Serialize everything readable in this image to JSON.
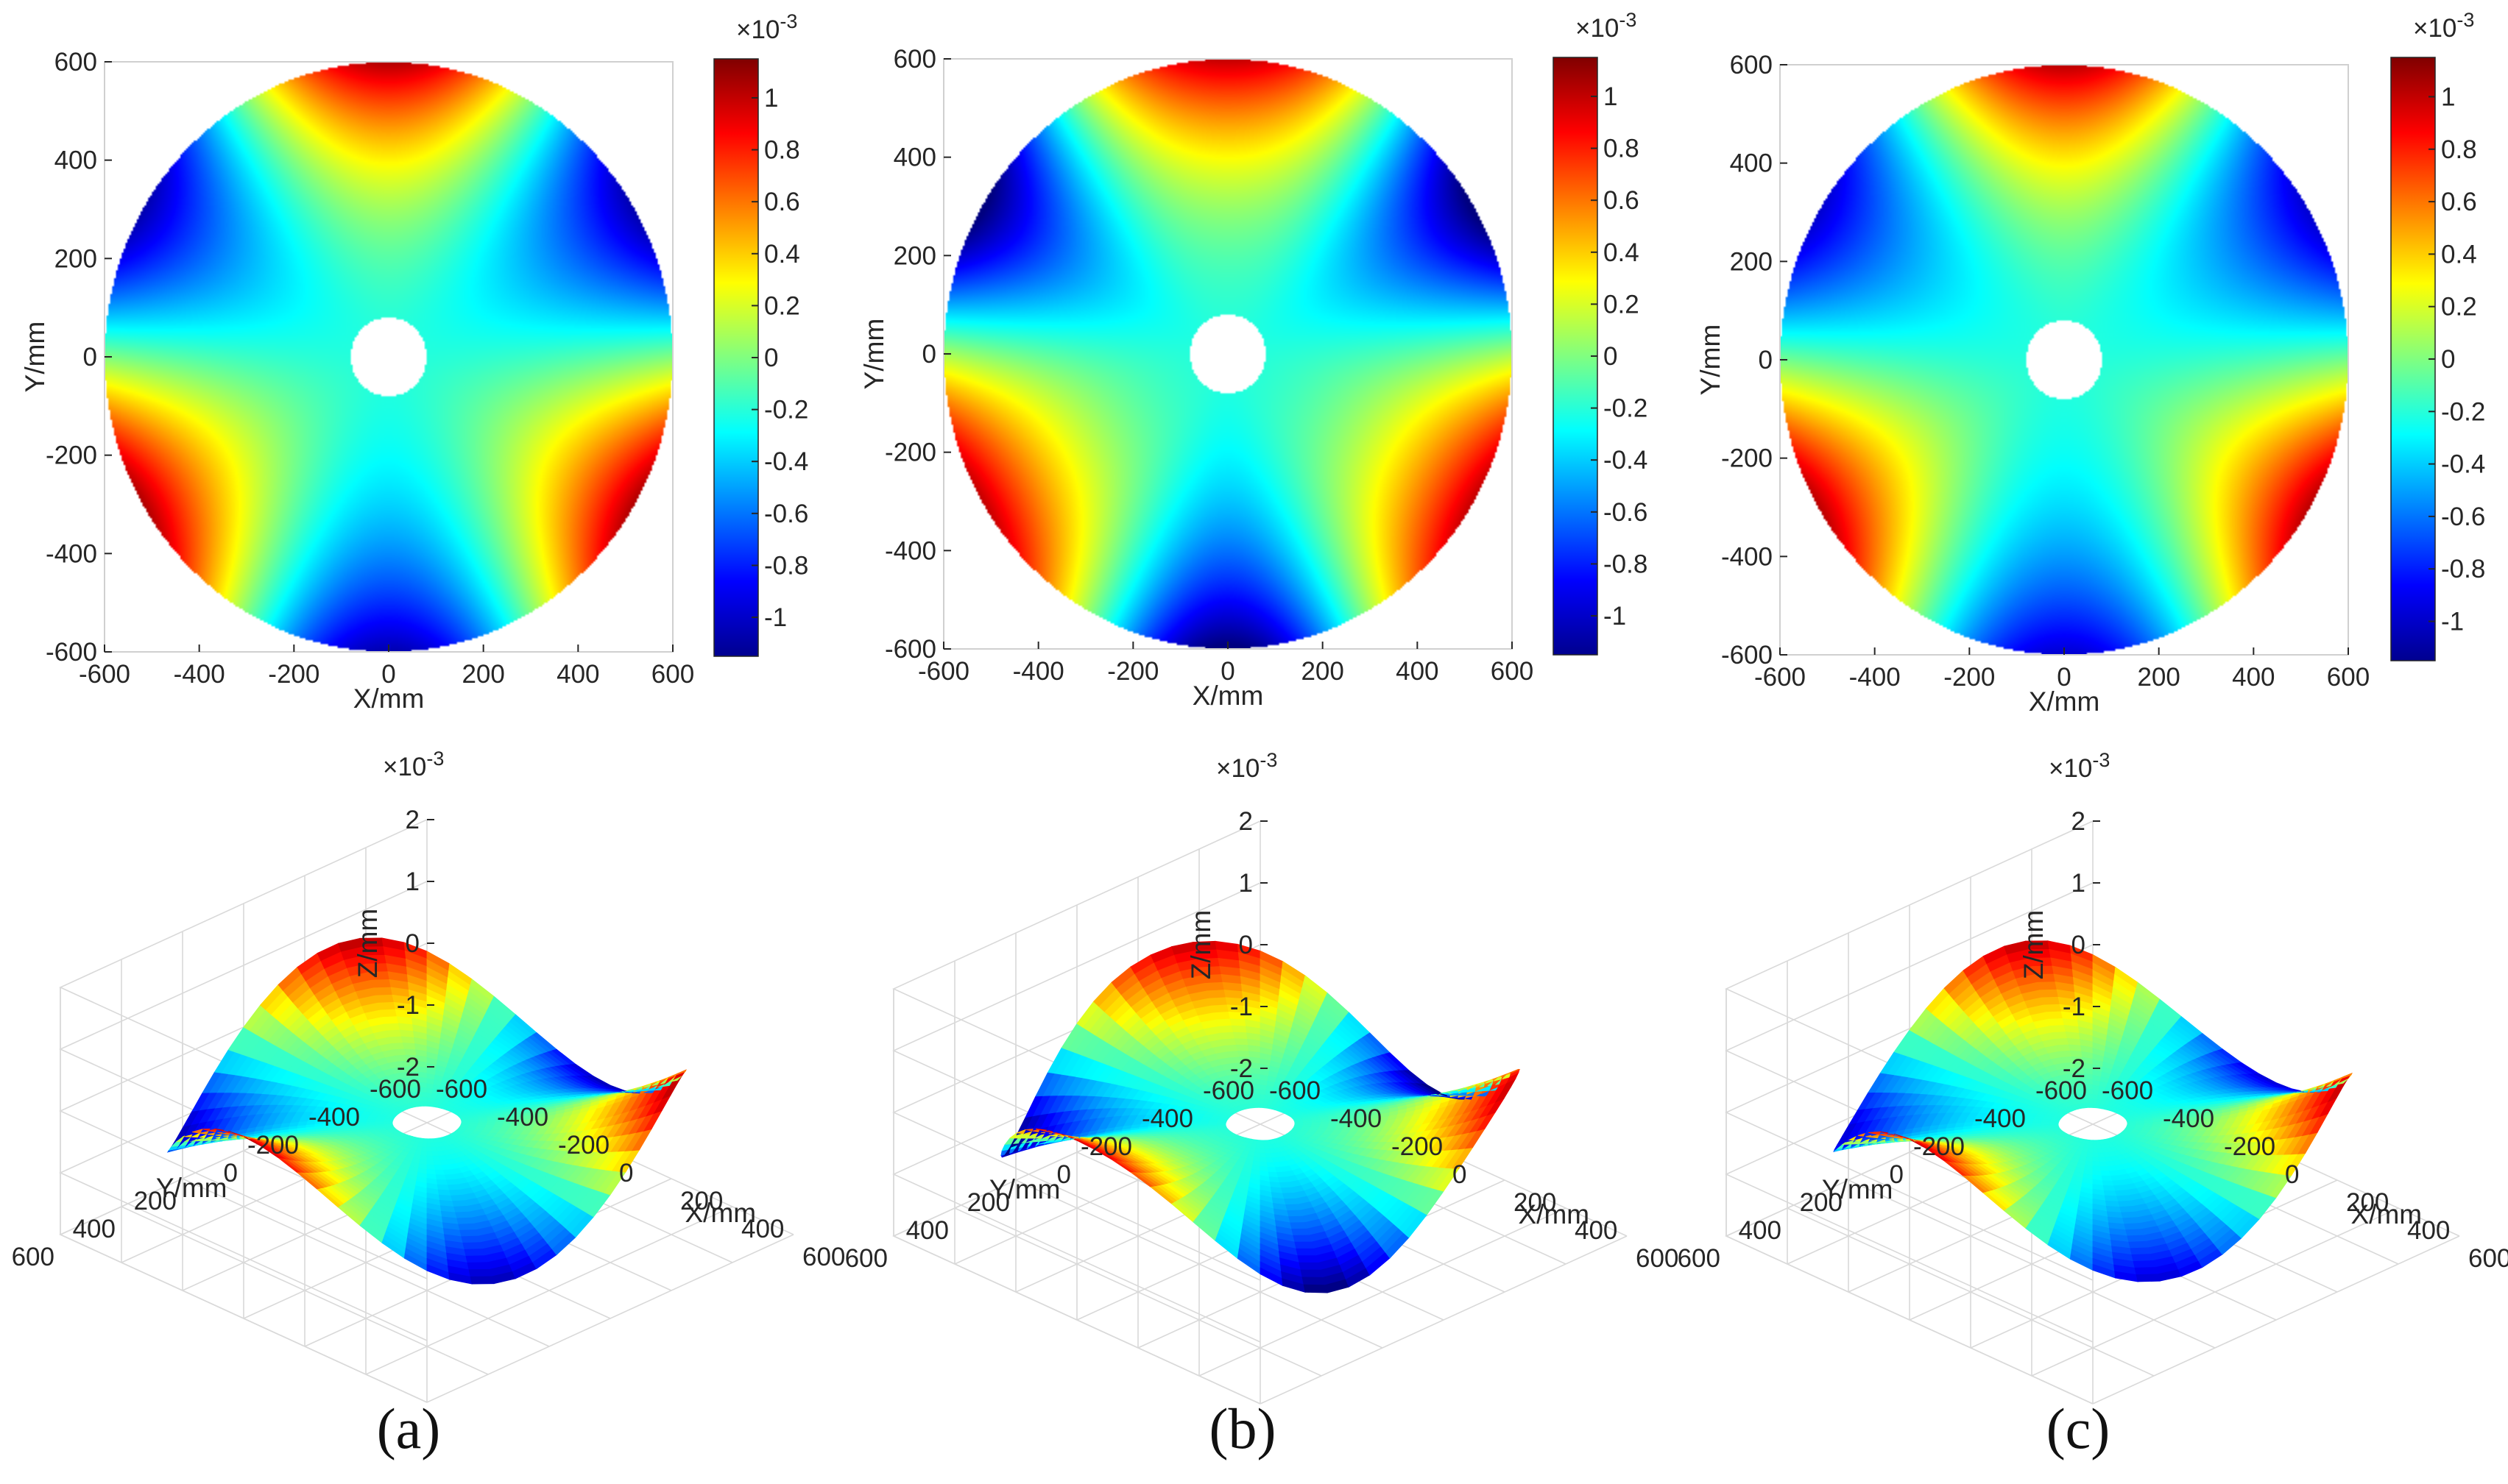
{
  "colors": {
    "axis": "#262626",
    "grid": "#d9d9d9",
    "jet": [
      "#00008f",
      "#0000ff",
      "#0080ff",
      "#00ffff",
      "#80ff80",
      "#ffff00",
      "#ff8000",
      "#ff0000",
      "#800000"
    ]
  },
  "chart_data": [
    {
      "id": "a-top",
      "type": "heatmap",
      "panel": "a",
      "view": "2D",
      "title": "",
      "xlabel": "X/mm",
      "ylabel": "Y/mm",
      "xlim": [
        -600,
        600
      ],
      "ylim": [
        -600,
        600
      ],
      "xticks": [
        "-600",
        "-400",
        "-200",
        "0",
        "200",
        "400",
        "600"
      ],
      "yticks": [
        "600",
        "400",
        "200",
        "0",
        "-200",
        "-400",
        "-600"
      ],
      "colorbar": {
        "exponent": "×10",
        "power": "-3",
        "clim": [
          -1.15,
          1.15
        ],
        "ticks": [
          "1",
          "0.8",
          "0.6",
          "0.4",
          "0.2",
          "0",
          "-0.2",
          "-0.4",
          "-0.6",
          "-0.8",
          "-1"
        ]
      },
      "surface": {
        "aperture_radius": 600,
        "hole_radius": 80,
        "model": "trefoil",
        "amplitude": 1.1,
        "lobe_angles_deg": [
          90,
          210,
          330
        ],
        "residual": 0.0
      }
    },
    {
      "id": "b-top",
      "type": "heatmap",
      "panel": "b",
      "view": "2D",
      "title": "",
      "xlabel": "X/mm",
      "ylabel": "Y/mm",
      "xlim": [
        -600,
        600
      ],
      "ylim": [
        -600,
        600
      ],
      "xticks": [
        "-600",
        "-400",
        "-200",
        "0",
        "200",
        "400",
        "600"
      ],
      "yticks": [
        "600",
        "400",
        "200",
        "0",
        "-200",
        "-400",
        "-600"
      ],
      "colorbar": {
        "exponent": "×10",
        "power": "-3",
        "clim": [
          -1.15,
          1.15
        ],
        "ticks": [
          "1",
          "0.8",
          "0.6",
          "0.4",
          "0.2",
          "0",
          "-0.2",
          "-0.4",
          "-0.6",
          "-0.8",
          "-1"
        ]
      },
      "surface": {
        "aperture_radius": 600,
        "hole_radius": 80,
        "model": "trefoil",
        "amplitude": 1.15,
        "lobe_angles_deg": [
          90,
          210,
          330
        ],
        "residual": 0.18
      }
    },
    {
      "id": "c-top",
      "type": "heatmap",
      "panel": "c",
      "view": "2D",
      "title": "",
      "xlabel": "X/mm",
      "ylabel": "Y/mm",
      "xlim": [
        -600,
        600
      ],
      "ylim": [
        -600,
        600
      ],
      "xticks": [
        "-600",
        "-400",
        "-200",
        "0",
        "200",
        "400",
        "600"
      ],
      "yticks": [
        "600",
        "400",
        "200",
        "0",
        "-200",
        "-400",
        "-600"
      ],
      "colorbar": {
        "exponent": "×10",
        "power": "-3",
        "clim": [
          -1.15,
          1.15
        ],
        "ticks": [
          "1",
          "0.8",
          "0.6",
          "0.4",
          "0.2",
          "0",
          "-0.2",
          "-0.4",
          "-0.6",
          "-0.8",
          "-1"
        ]
      },
      "surface": {
        "aperture_radius": 600,
        "hole_radius": 80,
        "model": "trefoil",
        "amplitude": 1.05,
        "lobe_angles_deg": [
          90,
          210,
          330
        ],
        "residual": -0.05
      }
    },
    {
      "id": "a-bottom",
      "type": "surface3d",
      "panel": "a",
      "view": "3D",
      "zlabel": "Z/mm",
      "xlabel": "X/mm",
      "ylabel": "Y/mm",
      "z_exponent": "×10",
      "z_power": "-3",
      "zlim": [
        -2,
        2
      ],
      "zticks": [
        "2",
        "1",
        "0",
        "-1",
        "-2"
      ],
      "xticks": [
        "-600",
        "-400",
        "-200",
        "0",
        "200",
        "400",
        "600"
      ],
      "yticks": [
        "600",
        "400",
        "200",
        "0",
        "-200",
        "-400",
        "-600"
      ]
    },
    {
      "id": "b-bottom",
      "type": "surface3d",
      "panel": "b",
      "view": "3D",
      "zlabel": "Z/mm",
      "xlabel": "X/mm",
      "ylabel": "Y/mm",
      "z_exponent": "×10",
      "z_power": "-3",
      "zlim": [
        -2,
        2
      ],
      "zticks": [
        "2",
        "1",
        "0",
        "-1",
        "-2"
      ],
      "xticks": [
        "-600",
        "-400",
        "-200",
        "0",
        "200",
        "400",
        "600"
      ],
      "yticks": [
        "600",
        "400",
        "200",
        "0",
        "-200",
        "-400",
        "-600"
      ]
    },
    {
      "id": "c-bottom",
      "type": "surface3d",
      "panel": "c",
      "view": "3D",
      "zlabel": "Z/mm",
      "xlabel": "X/mm",
      "ylabel": "Y/mm",
      "z_exponent": "×10",
      "z_power": "-3",
      "zlim": [
        -2,
        2
      ],
      "zticks": [
        "2",
        "1",
        "0",
        "-1",
        "-2"
      ],
      "xticks": [
        "-600",
        "-400",
        "-200",
        "0",
        "200",
        "400",
        "600"
      ],
      "yticks": [
        "600",
        "400",
        "200",
        "0",
        "-200",
        "-400",
        "-600"
      ]
    }
  ],
  "panel_labels": [
    "(a)",
    "(b)",
    "(c)"
  ]
}
